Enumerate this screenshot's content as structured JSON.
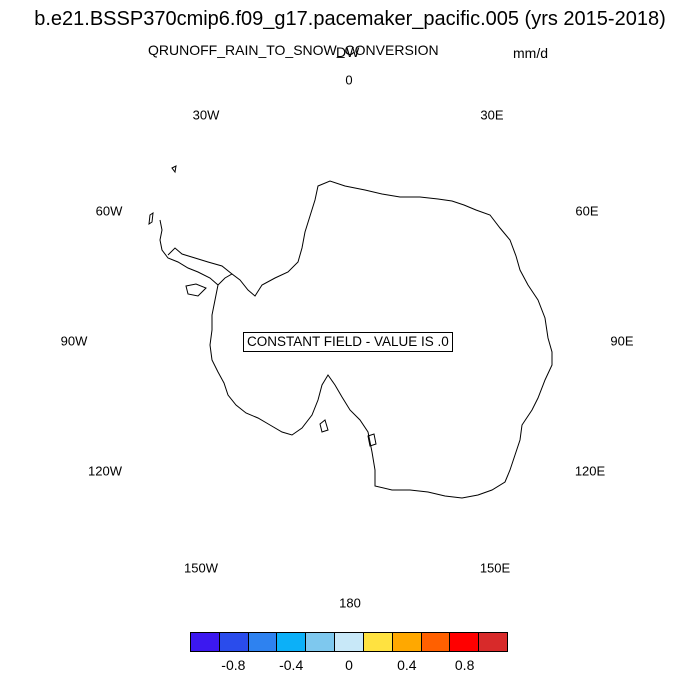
{
  "title": "b.e21.BSSP370cmip6.f09_g17.pacemaker_pacific.005 (yrs 2015-2018)",
  "variable": "QRUNOFF_RAIN_TO_SNOW_CONVERSION",
  "units": "mm/d",
  "overlap_label": "DW",
  "map": {
    "projection": "south-polar-stereographic",
    "longitude_labels": [
      "0",
      "30E",
      "60E",
      "90E",
      "120E",
      "150E",
      "180",
      "150W",
      "120W",
      "90W",
      "60W",
      "30W"
    ],
    "message": "CONSTANT FIELD - VALUE IS .0",
    "coastline_color": "#000000"
  },
  "colorbar": {
    "colors": [
      "#3c18f0",
      "#2a4cec",
      "#2e82f0",
      "#0cb0f8",
      "#7ec8ee",
      "#c8e8f8",
      "#ffe240",
      "#ffa800",
      "#ff6000",
      "#ff0000",
      "#d82a2a"
    ],
    "tick_labels": [
      "-0.8",
      "-0.4",
      "0",
      "0.4",
      "0.8"
    ],
    "tick_values": [
      -0.8,
      -0.4,
      0,
      0.4,
      0.8
    ]
  }
}
